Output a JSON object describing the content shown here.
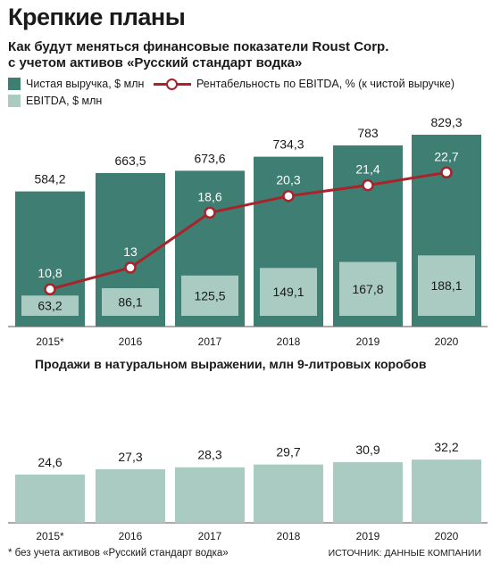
{
  "title": "Крепкие планы",
  "subtitle_line1": "Как будут меняться финансовые показатели Roust Corp.",
  "subtitle_line2": "с учетом активов «Русский стандарт водка»",
  "legend": {
    "revenue": "Чистая выручка, $ млн",
    "margin": "Рентабельность по EBITDA, % (к чистой выручке)",
    "ebitda": "EBITDA, $ млн"
  },
  "section2_title": "Продажи в натуральном выражении, млн 9-литровых коробов",
  "footnote": "* без учета активов «Русский стандарт водка»",
  "source": "ИСТОЧНИК: ДАННЫЕ КОМПАНИИ",
  "colors": {
    "revenue": "#3f7f73",
    "ebitda": "#a9cbc1",
    "margin": "#a8232a",
    "volume": "#a9cbc1"
  },
  "chart_data": [
    {
      "type": "bar",
      "categories": [
        "2015*",
        "2016",
        "2017",
        "2018",
        "2019",
        "2020"
      ],
      "series": [
        {
          "name": "Чистая выручка, $ млн",
          "values": [
            584.2,
            663.5,
            673.6,
            734.3,
            783,
            829.3
          ],
          "labels": [
            "584,2",
            "663,5",
            "673,6",
            "734,3",
            "783",
            "829,3"
          ]
        },
        {
          "name": "EBITDA, $ млн",
          "values": [
            63.2,
            86.1,
            125.5,
            149.1,
            167.8,
            188.1
          ],
          "labels": [
            "63,2",
            "86,1",
            "125,5",
            "149,1",
            "167,8",
            "188,1"
          ]
        },
        {
          "name": "Рентабельность по EBITDA, % (к чистой выручке)",
          "type": "line",
          "values": [
            10.8,
            13,
            18.6,
            20.3,
            21.4,
            22.7
          ],
          "labels": [
            "10,8",
            "13",
            "18,6",
            "20,3",
            "21,4",
            "22,7"
          ]
        }
      ],
      "legend_position": "top",
      "grid": false
    },
    {
      "type": "bar",
      "title": "Продажи в натуральном выражении, млн 9-литровых коробов",
      "categories": [
        "2015*",
        "2016",
        "2017",
        "2018",
        "2019",
        "2020"
      ],
      "values": [
        24.6,
        27.3,
        28.3,
        29.7,
        30.9,
        32.2
      ],
      "labels": [
        "24,6",
        "27,3",
        "28,3",
        "29,7",
        "30,9",
        "32,2"
      ],
      "grid": false
    }
  ]
}
